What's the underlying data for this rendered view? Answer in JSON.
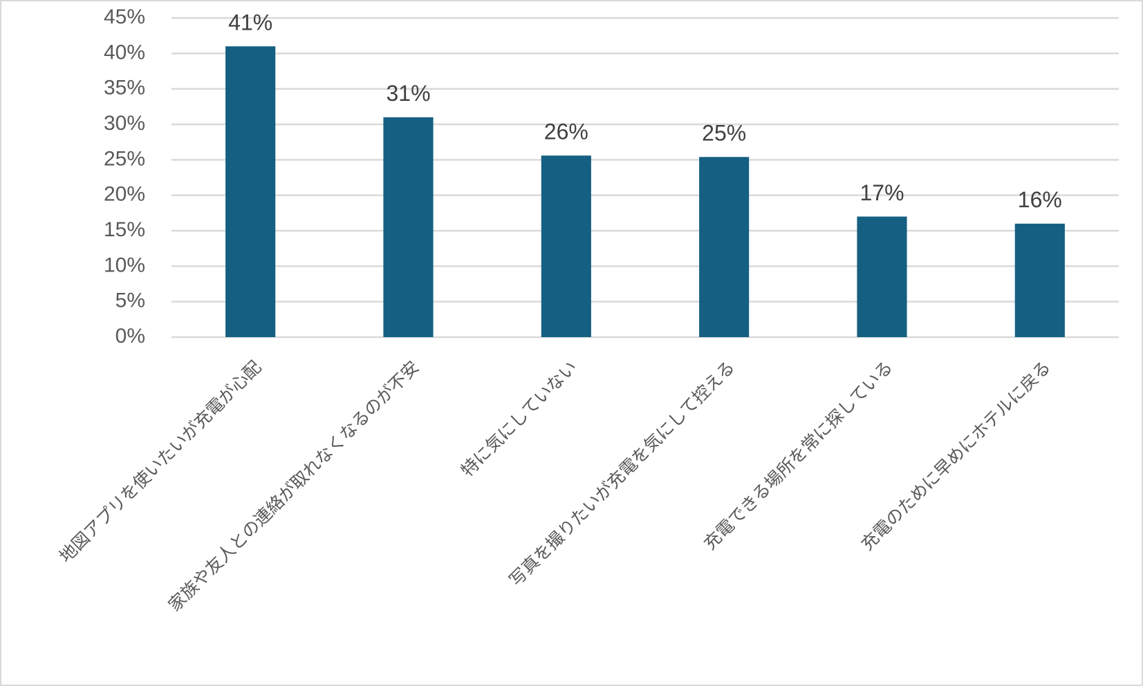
{
  "chart_data": {
    "type": "bar",
    "categories": [
      "地図アプリを使いたいが充電が心配",
      "家族や友人との連絡が取れなくなるのが不安",
      "特に気にしていない",
      "写真を撮りたいが充電を気にして控える",
      "充電できる場所を常に探している",
      "充電のために早めにホテルに戻る"
    ],
    "values": [
      41,
      31,
      25.6,
      25.4,
      17,
      16
    ],
    "value_labels": [
      "41%",
      "31%",
      "26%",
      "25%",
      "17%",
      "16%"
    ],
    "color": "#156082",
    "ylim": [
      0,
      45
    ],
    "yticks": [
      {
        "value": 0,
        "label": "0%"
      },
      {
        "value": 5,
        "label": "5%"
      },
      {
        "value": 10,
        "label": "10%"
      },
      {
        "value": 15,
        "label": "15%"
      },
      {
        "value": 20,
        "label": "20%"
      },
      {
        "value": 25,
        "label": "25%"
      },
      {
        "value": 30,
        "label": "30%"
      },
      {
        "value": 35,
        "label": "35%"
      },
      {
        "value": 40,
        "label": "40%"
      },
      {
        "value": 45,
        "label": "45%"
      }
    ],
    "grid": true
  }
}
